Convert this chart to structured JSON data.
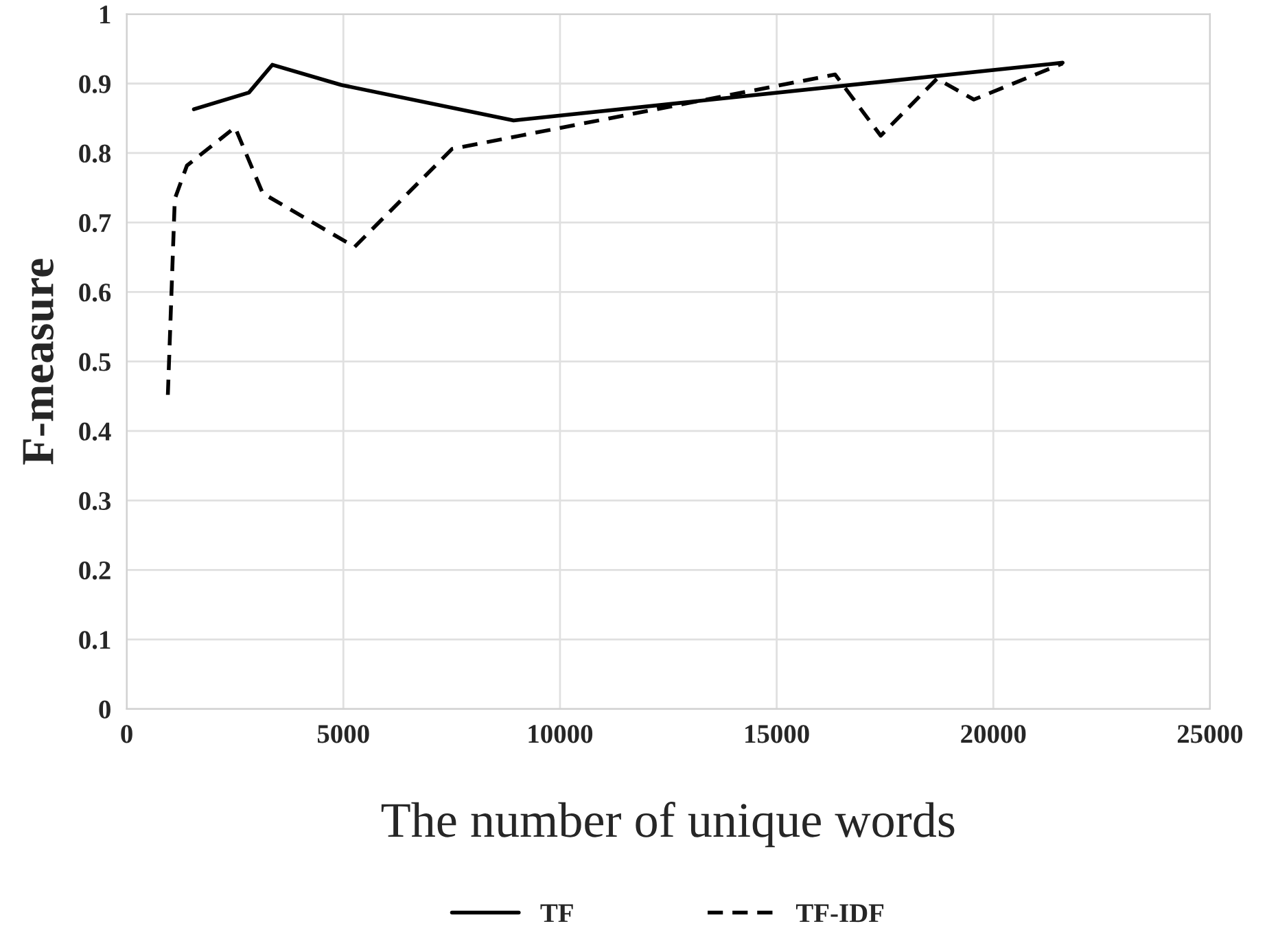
{
  "chart_data": {
    "type": "line",
    "xlabel": "The number of unique words",
    "ylabel": "F-measure",
    "xlim": [
      0,
      25000
    ],
    "xticks": [
      0,
      5000,
      10000,
      15000,
      20000,
      25000
    ],
    "ylim": [
      0,
      1
    ],
    "yticks": [
      0,
      0.1,
      0.2,
      0.3,
      0.4,
      0.5,
      0.6,
      0.7,
      0.8,
      0.9,
      1
    ],
    "grid": true,
    "legend": "bottom",
    "series": [
      {
        "name": "TF",
        "color": "#000000",
        "line_style": "solid",
        "x": [
          1550,
          2820,
          3360,
          4950,
          8930,
          21600
        ],
        "values": [
          0.863,
          0.887,
          0.927,
          0.898,
          0.847,
          0.93
        ]
      },
      {
        "name": "TF-IDF",
        "color": "#000000",
        "line_style": "dashed",
        "x": [
          950,
          1110,
          1390,
          2500,
          3140,
          5260,
          7510,
          16350,
          17400,
          18700,
          19550,
          21600
        ],
        "values": [
          0.452,
          0.734,
          0.782,
          0.837,
          0.742,
          0.665,
          0.806,
          0.913,
          0.825,
          0.907,
          0.877,
          0.929
        ]
      }
    ]
  }
}
